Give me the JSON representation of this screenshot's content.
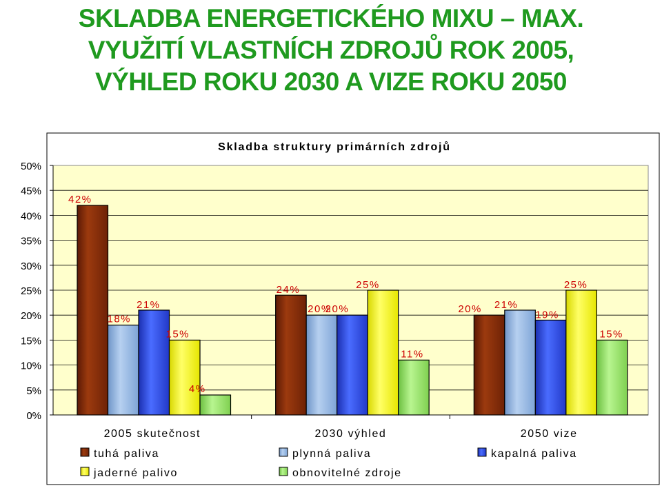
{
  "title_lines": [
    "SKLADBA ENERGETICKÉHO MIXU – MAX.",
    "VYUŽITÍ VLASTNÍCH ZDROJŮ ROK 2005,",
    "VÝHLED ROKU 2030 A VIZE ROKU 2050"
  ],
  "chart_data": {
    "type": "bar",
    "title": "Skladba struktury primárních zdrojů",
    "xlabel": "",
    "ylabel": "",
    "ylim": [
      0,
      50
    ],
    "ytick_step": 5,
    "ytick_labels": [
      "0%",
      "5%",
      "10%",
      "15%",
      "20%",
      "25%",
      "30%",
      "35%",
      "40%",
      "45%",
      "50%"
    ],
    "grid": true,
    "legend_position": "bottom",
    "categories": [
      "2005 skutečnost",
      "2030 výhled",
      "2050 vize"
    ],
    "series": [
      {
        "name": "tuhá paliva",
        "values": [
          42,
          24,
          20
        ],
        "labels": [
          "42%",
          "24%",
          "20%"
        ],
        "color": "#8b2e0a"
      },
      {
        "name": "plynná paliva",
        "values": [
          18,
          20,
          21
        ],
        "labels": [
          "18%",
          "20%",
          "21%"
        ],
        "color": "#8fb5e0"
      },
      {
        "name": "kapalná paliva",
        "values": [
          21,
          20,
          19
        ],
        "labels": [
          "21%",
          "20%",
          "19%"
        ],
        "color": "#2f4fe8"
      },
      {
        "name": "jaderné palivo",
        "values": [
          15,
          25,
          25
        ],
        "labels": [
          "15%",
          "25%",
          "25%"
        ],
        "color": "#ffff33"
      },
      {
        "name": "obnovitelné zdroje",
        "values": [
          4,
          11,
          15
        ],
        "labels": [
          "4%",
          "11%",
          "15%"
        ],
        "color": "#99ee66"
      }
    ],
    "plot_background": "#ffffcc",
    "label_color": "#cc0000"
  }
}
